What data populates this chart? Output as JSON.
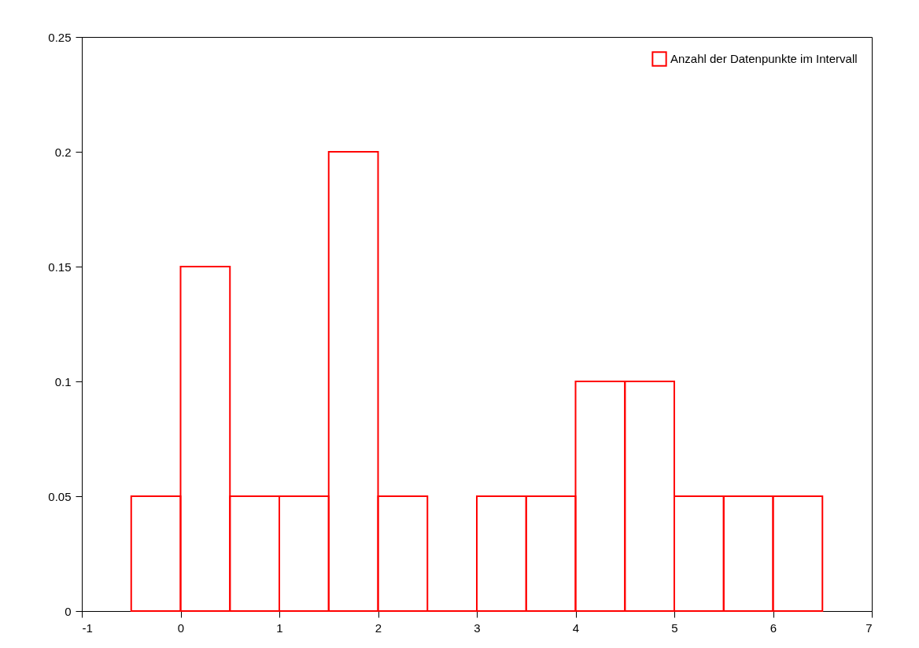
{
  "chart_data": {
    "type": "histogram",
    "bins": [
      -0.5,
      0,
      0.5,
      1,
      1.5,
      2,
      2.5,
      3,
      3.5,
      4,
      4.5,
      5,
      5.5,
      6,
      6.5
    ],
    "series": [
      {
        "name": "Anzahl der Datenpunkte im Intervall",
        "color": "#ff0000",
        "values": [
          0.05,
          0.15,
          0.05,
          0.05,
          0.2,
          0.05,
          0,
          0.05,
          0.05,
          0.1,
          0.1,
          0.05,
          0.05,
          0.05
        ]
      }
    ],
    "xlim": [
      -1,
      7
    ],
    "xticks": [
      -1,
      0,
      1,
      2,
      3,
      4,
      5,
      6,
      7
    ],
    "ylim": [
      0,
      0.25
    ],
    "yticks": [
      0,
      0.05,
      0.1,
      0.15,
      0.2,
      0.25
    ],
    "grid": false,
    "legend": "top right"
  }
}
